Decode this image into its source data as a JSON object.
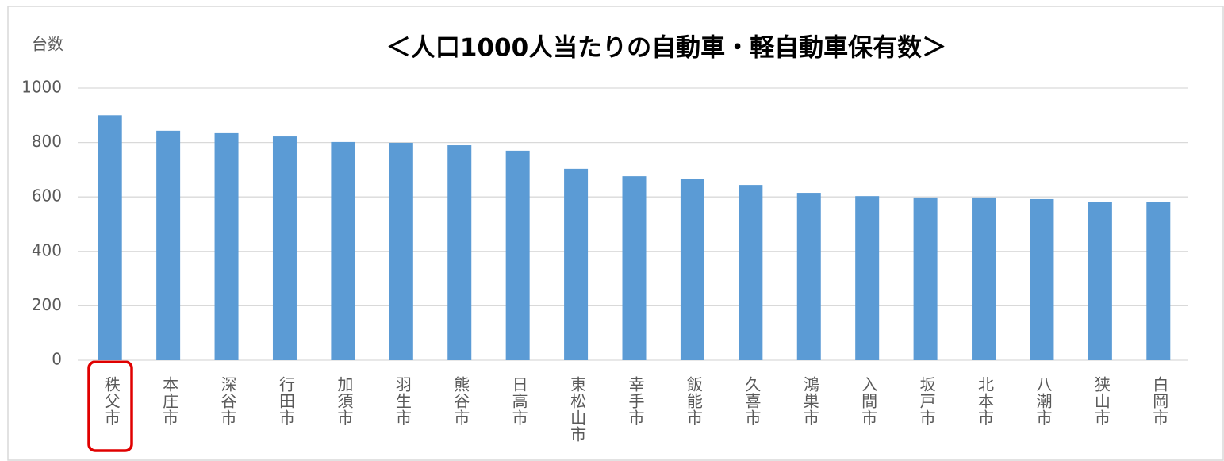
{
  "chart_data": {
    "type": "bar",
    "title": "＜人口1000人当たりの自動車・軽自動車保有数＞",
    "y_label": "台数",
    "categories": [
      "秩父市",
      "本庄市",
      "深谷市",
      "行田市",
      "加須市",
      "羽生市",
      "熊谷市",
      "日高市",
      "東松山市",
      "幸手市",
      "飯能市",
      "久喜市",
      "鴻巣市",
      "入間市",
      "坂戸市",
      "北本市",
      "八潮市",
      "狭山市",
      "白岡市"
    ],
    "values": [
      900,
      843,
      837,
      822,
      802,
      799,
      790,
      770,
      703,
      676,
      665,
      644,
      615,
      603,
      598,
      598,
      592,
      583,
      583
    ],
    "color": "#5b9bd5",
    "ylim": [
      0,
      1000
    ],
    "yticks": [
      0,
      200,
      400,
      600,
      800,
      1000
    ],
    "grid": true
  }
}
